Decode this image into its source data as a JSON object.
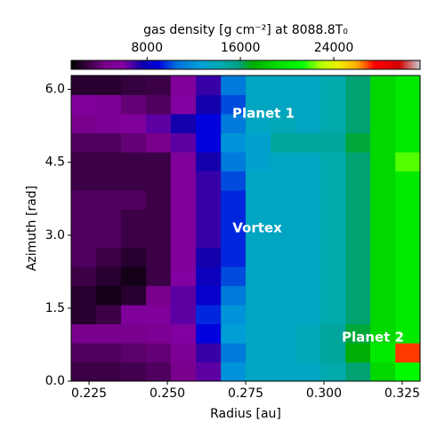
{
  "chart_data": {
    "type": "heatmap",
    "colorbar_label": "gas density [g cm⁻²] at 8088.8T₀",
    "xlabel": "Radius [au]",
    "ylabel": "Azimuth [rad]",
    "annotations": [
      "Planet 1",
      "Vortex",
      "Planet 2"
    ],
    "xlim": [
      0.2193,
      0.3307
    ],
    "ylim": [
      0,
      6.2832
    ],
    "xticks": [
      0.225,
      {
        "value": 0.25,
        "label": "0.250"
      },
      0.275,
      {
        "value": 0.3,
        "label": "0.300"
      },
      0.325
    ],
    "yticks": [
      {
        "value": 0,
        "label": "0.0"
      },
      1.5,
      {
        "value": 3,
        "label": "3.0"
      },
      4.5,
      {
        "value": 6,
        "label": "6.0"
      }
    ],
    "clim": [
      1500,
      31400
    ],
    "cticks": [
      8000,
      16000,
      24000
    ],
    "colormap": "nipy_spectral",
    "x_edges": [
      0.2193,
      0.2273,
      0.2352,
      0.2432,
      0.2511,
      0.2591,
      0.2671,
      0.275,
      0.283,
      0.2909,
      0.2989,
      0.3069,
      0.3148,
      0.3228,
      0.3307
    ],
    "y_edges": [
      0,
      0.3927,
      0.7854,
      1.1781,
      1.5708,
      1.9635,
      2.3562,
      2.7489,
      3.1416,
      3.5343,
      3.927,
      4.3197,
      4.7124,
      5.1051,
      5.4978,
      5.8905,
      6.2832
    ],
    "z": [
      [
        3000,
        3000,
        3200,
        3500,
        4500,
        6500,
        12000,
        13500,
        13500,
        13500,
        14500,
        16000,
        19000,
        21000
      ],
      [
        3500,
        3500,
        3800,
        4000,
        5000,
        7000,
        11000,
        13500,
        13500,
        14000,
        15000,
        17000,
        20000,
        27000
      ],
      [
        4500,
        4500,
        4500,
        5000,
        6000,
        9000,
        12500,
        13500,
        13500,
        14000,
        15000,
        16500,
        19000,
        20000
      ],
      [
        2500,
        3000,
        5500,
        5500,
        6500,
        9500,
        12000,
        13500,
        13500,
        13500,
        14500,
        16000,
        19000,
        20000
      ],
      [
        2500,
        2000,
        2500,
        4500,
        6500,
        8500,
        11000,
        13500,
        13500,
        13500,
        14500,
        16000,
        19000,
        20000
      ],
      [
        3000,
        2500,
        2000,
        3000,
        6000,
        8000,
        10000,
        13500,
        13500,
        13500,
        14500,
        16000,
        19000,
        20000
      ],
      [
        3500,
        3000,
        2500,
        3000,
        5500,
        7500,
        9500,
        13500,
        13500,
        13500,
        14500,
        16000,
        19000,
        20000
      ],
      [
        3500,
        3500,
        3000,
        3000,
        5500,
        7000,
        9500,
        13500,
        13500,
        13500,
        14500,
        16000,
        19000,
        20000
      ],
      [
        3500,
        3500,
        3000,
        3000,
        5500,
        7000,
        9500,
        13500,
        13500,
        13500,
        14500,
        16000,
        19000,
        20000
      ],
      [
        3500,
        3500,
        3500,
        3000,
        5500,
        7000,
        9500,
        13500,
        13500,
        13500,
        14500,
        16000,
        19000,
        20000
      ],
      [
        3000,
        3000,
        3000,
        3000,
        5500,
        7000,
        10000,
        13500,
        13500,
        13500,
        14500,
        16000,
        19000,
        20000
      ],
      [
        3000,
        3000,
        3000,
        3000,
        5500,
        7500,
        11000,
        13000,
        13500,
        13500,
        14500,
        16000,
        19000,
        22000
      ],
      [
        3500,
        3500,
        4000,
        4500,
        6500,
        9000,
        12000,
        13000,
        15000,
        15000,
        15000,
        16500,
        19000,
        20000
      ],
      [
        4500,
        5000,
        5500,
        6500,
        7500,
        9000,
        11000,
        13500,
        14000,
        13500,
        14500,
        16000,
        19000,
        20000
      ],
      [
        5500,
        5000,
        4000,
        3500,
        6000,
        7500,
        10000,
        13500,
        13500,
        13500,
        14500,
        16000,
        19000,
        20000
      ],
      [
        2500,
        2500,
        2800,
        3000,
        5500,
        7000,
        11000,
        13500,
        13500,
        13500,
        14500,
        16000,
        19000,
        20000
      ]
    ]
  }
}
